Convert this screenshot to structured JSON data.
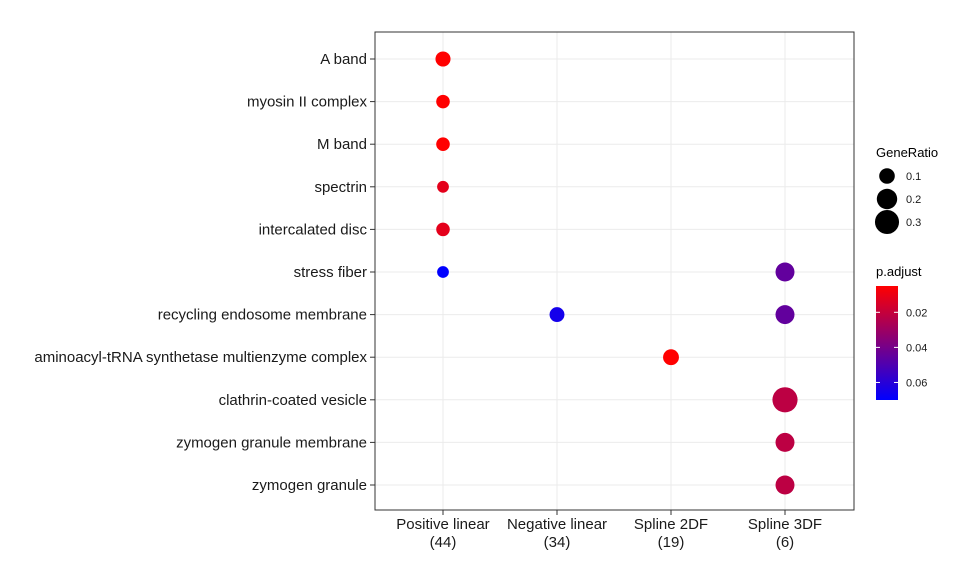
{
  "chart_data": {
    "type": "scatter",
    "title": "",
    "xlabel": "",
    "ylabel": "",
    "grid": true,
    "x_categories": [
      {
        "label": "Positive linear",
        "count": "(44)"
      },
      {
        "label": "Negative linear",
        "count": "(34)"
      },
      {
        "label": "Spline 2DF",
        "count": "(19)"
      },
      {
        "label": "Spline 3DF",
        "count": "(6)"
      }
    ],
    "y_categories": [
      "A band",
      "myosin II complex",
      "M band",
      "spectrin",
      "intercalated disc",
      "stress fiber",
      "recycling endosome membrane",
      "aminoacyl-tRNA synthetase multienzyme complex",
      "clathrin-coated vesicle",
      "zymogen granule membrane",
      "zymogen granule"
    ],
    "points": [
      {
        "x": "Positive linear",
        "y": "A band",
        "gene_ratio": 0.091,
        "p_adjust": 0.005
      },
      {
        "x": "Positive linear",
        "y": "myosin II complex",
        "gene_ratio": 0.068,
        "p_adjust": 0.005
      },
      {
        "x": "Positive linear",
        "y": "M band",
        "gene_ratio": 0.068,
        "p_adjust": 0.005
      },
      {
        "x": "Positive linear",
        "y": "spectrin",
        "gene_ratio": 0.045,
        "p_adjust": 0.012
      },
      {
        "x": "Positive linear",
        "y": "intercalated disc",
        "gene_ratio": 0.068,
        "p_adjust": 0.012
      },
      {
        "x": "Positive linear",
        "y": "stress fiber",
        "gene_ratio": 0.045,
        "p_adjust": 0.07
      },
      {
        "x": "Negative linear",
        "y": "recycling endosome membrane",
        "gene_ratio": 0.088,
        "p_adjust": 0.065
      },
      {
        "x": "Spline 2DF",
        "y": "aminoacyl-tRNA synthetase multienzyme complex",
        "gene_ratio": 0.105,
        "p_adjust": 0.005
      },
      {
        "x": "Spline 3DF",
        "y": "stress fiber",
        "gene_ratio": 0.167,
        "p_adjust": 0.045
      },
      {
        "x": "Spline 3DF",
        "y": "recycling endosome membrane",
        "gene_ratio": 0.167,
        "p_adjust": 0.045
      },
      {
        "x": "Spline 3DF",
        "y": "clathrin-coated vesicle",
        "gene_ratio": 0.333,
        "p_adjust": 0.022
      },
      {
        "x": "Spline 3DF",
        "y": "zymogen granule membrane",
        "gene_ratio": 0.167,
        "p_adjust": 0.022
      },
      {
        "x": "Spline 3DF",
        "y": "zymogen granule",
        "gene_ratio": 0.167,
        "p_adjust": 0.022
      }
    ],
    "size_legend": {
      "title": "GeneRatio",
      "entries": [
        {
          "label": "0.1",
          "value": 0.1
        },
        {
          "label": "0.2",
          "value": 0.2
        },
        {
          "label": "0.3",
          "value": 0.3
        }
      ]
    },
    "color_legend": {
      "title": "p.adjust",
      "range": [
        0.005,
        0.07
      ],
      "low_color": "#FF0000",
      "high_color": "#0000FF",
      "ticks": [
        {
          "label": "0.02",
          "value": 0.02
        },
        {
          "label": "0.04",
          "value": 0.04
        },
        {
          "label": "0.06",
          "value": 0.06
        }
      ]
    }
  }
}
